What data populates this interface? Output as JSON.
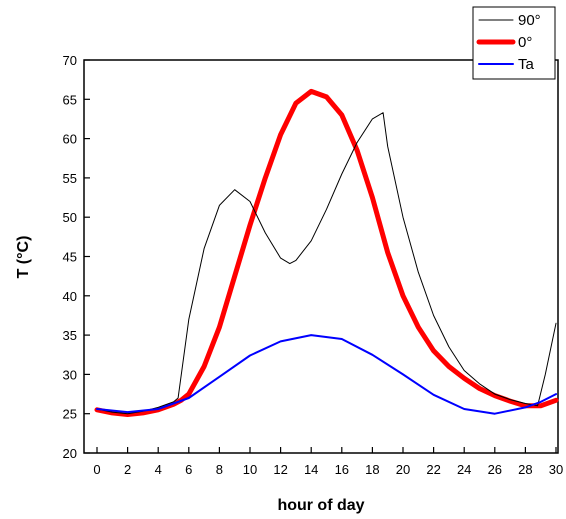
{
  "chart_data": {
    "type": "line",
    "xlabel": "hour of day",
    "ylabel": "T (°C)",
    "xlim": [
      0,
      30
    ],
    "ylim": [
      20,
      70
    ],
    "xticks": [
      0,
      2,
      4,
      6,
      8,
      10,
      12,
      14,
      16,
      18,
      20,
      22,
      24,
      26,
      28,
      30
    ],
    "yticks": [
      20,
      25,
      30,
      35,
      40,
      45,
      50,
      55,
      60,
      65,
      70
    ],
    "legend_position": "top-right",
    "series": [
      {
        "name": "90°",
        "color": "#000000",
        "x": [
          0,
          1,
          2,
          3,
          4,
          5,
          5.3,
          6,
          7,
          8,
          9,
          10,
          11,
          12,
          12.6,
          13,
          14,
          15,
          16,
          17,
          18,
          18.7,
          19,
          20,
          21,
          22,
          23,
          24,
          25,
          26,
          27,
          28,
          28.8,
          29.3,
          30
        ],
        "y": [
          25.6,
          25.2,
          25.0,
          25.3,
          25.8,
          26.5,
          27.0,
          37.0,
          46.0,
          51.5,
          53.5,
          52.0,
          48.0,
          44.8,
          44.1,
          44.5,
          47.0,
          51.0,
          55.5,
          59.5,
          62.5,
          63.3,
          59.0,
          50.0,
          43.0,
          37.5,
          33.5,
          30.5,
          28.8,
          27.5,
          26.8,
          26.3,
          26.0,
          30.0,
          36.5
        ]
      },
      {
        "name": "0°",
        "color": "#ff0000",
        "x": [
          0,
          1,
          2,
          3,
          4,
          5,
          5.5,
          6,
          7,
          8,
          9,
          10,
          11,
          12,
          13,
          14,
          15,
          16,
          17,
          18,
          19,
          20,
          21,
          22,
          23,
          24,
          25,
          26,
          27,
          28,
          29,
          30
        ],
        "y": [
          25.5,
          25.1,
          24.9,
          25.1,
          25.5,
          26.2,
          26.7,
          27.5,
          31.0,
          36.0,
          42.5,
          49.0,
          55.0,
          60.5,
          64.5,
          66.0,
          65.3,
          63.0,
          58.5,
          52.5,
          45.5,
          40.0,
          36.0,
          33.0,
          31.0,
          29.5,
          28.2,
          27.3,
          26.6,
          26.0,
          26.0,
          26.7
        ]
      },
      {
        "name": "Ta",
        "color": "#0000ff",
        "x": [
          0,
          2,
          4,
          6,
          8,
          10,
          12,
          14,
          16,
          18,
          20,
          22,
          24,
          26,
          28,
          29,
          30
        ],
        "y": [
          25.6,
          25.2,
          25.6,
          27.0,
          29.7,
          32.4,
          34.2,
          35.0,
          34.5,
          32.5,
          30.0,
          27.4,
          25.6,
          25.0,
          25.8,
          26.5,
          27.5
        ]
      }
    ]
  }
}
